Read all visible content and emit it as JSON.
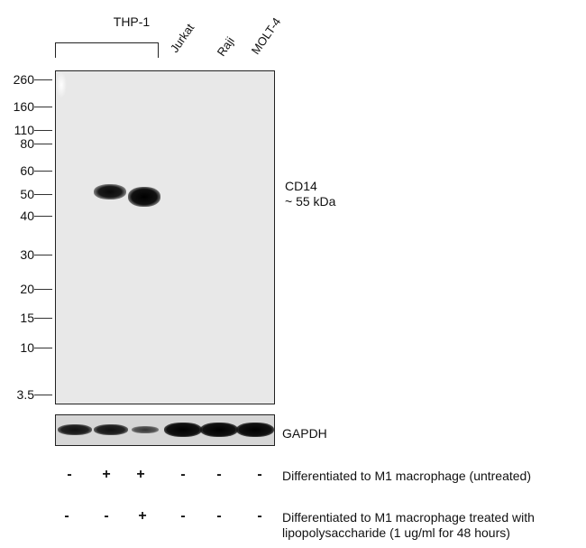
{
  "header": {
    "group_label": "THP-1",
    "lanes": [
      "Jurkat",
      "Raji",
      "MOLT-4"
    ]
  },
  "markers": [
    "260",
    "160",
    "110",
    "80",
    "60",
    "50",
    "40",
    "30",
    "20",
    "15",
    "10",
    "3.5"
  ],
  "target": {
    "name": "CD14",
    "size": "~ 55 kDa"
  },
  "loading_control": "GAPDH",
  "conditions": [
    {
      "signs": [
        "-",
        "+",
        "+",
        "-",
        "-",
        "-"
      ],
      "label": "Differentiated to M1 macrophage (untreated)"
    },
    {
      "signs": [
        "-",
        "-",
        "+",
        "-",
        "-",
        "-"
      ],
      "label_line1": "Differentiated to M1 macrophage treated with",
      "label_line2": "lipopolysaccharide (1 ug/ml for 48 hours)"
    }
  ]
}
